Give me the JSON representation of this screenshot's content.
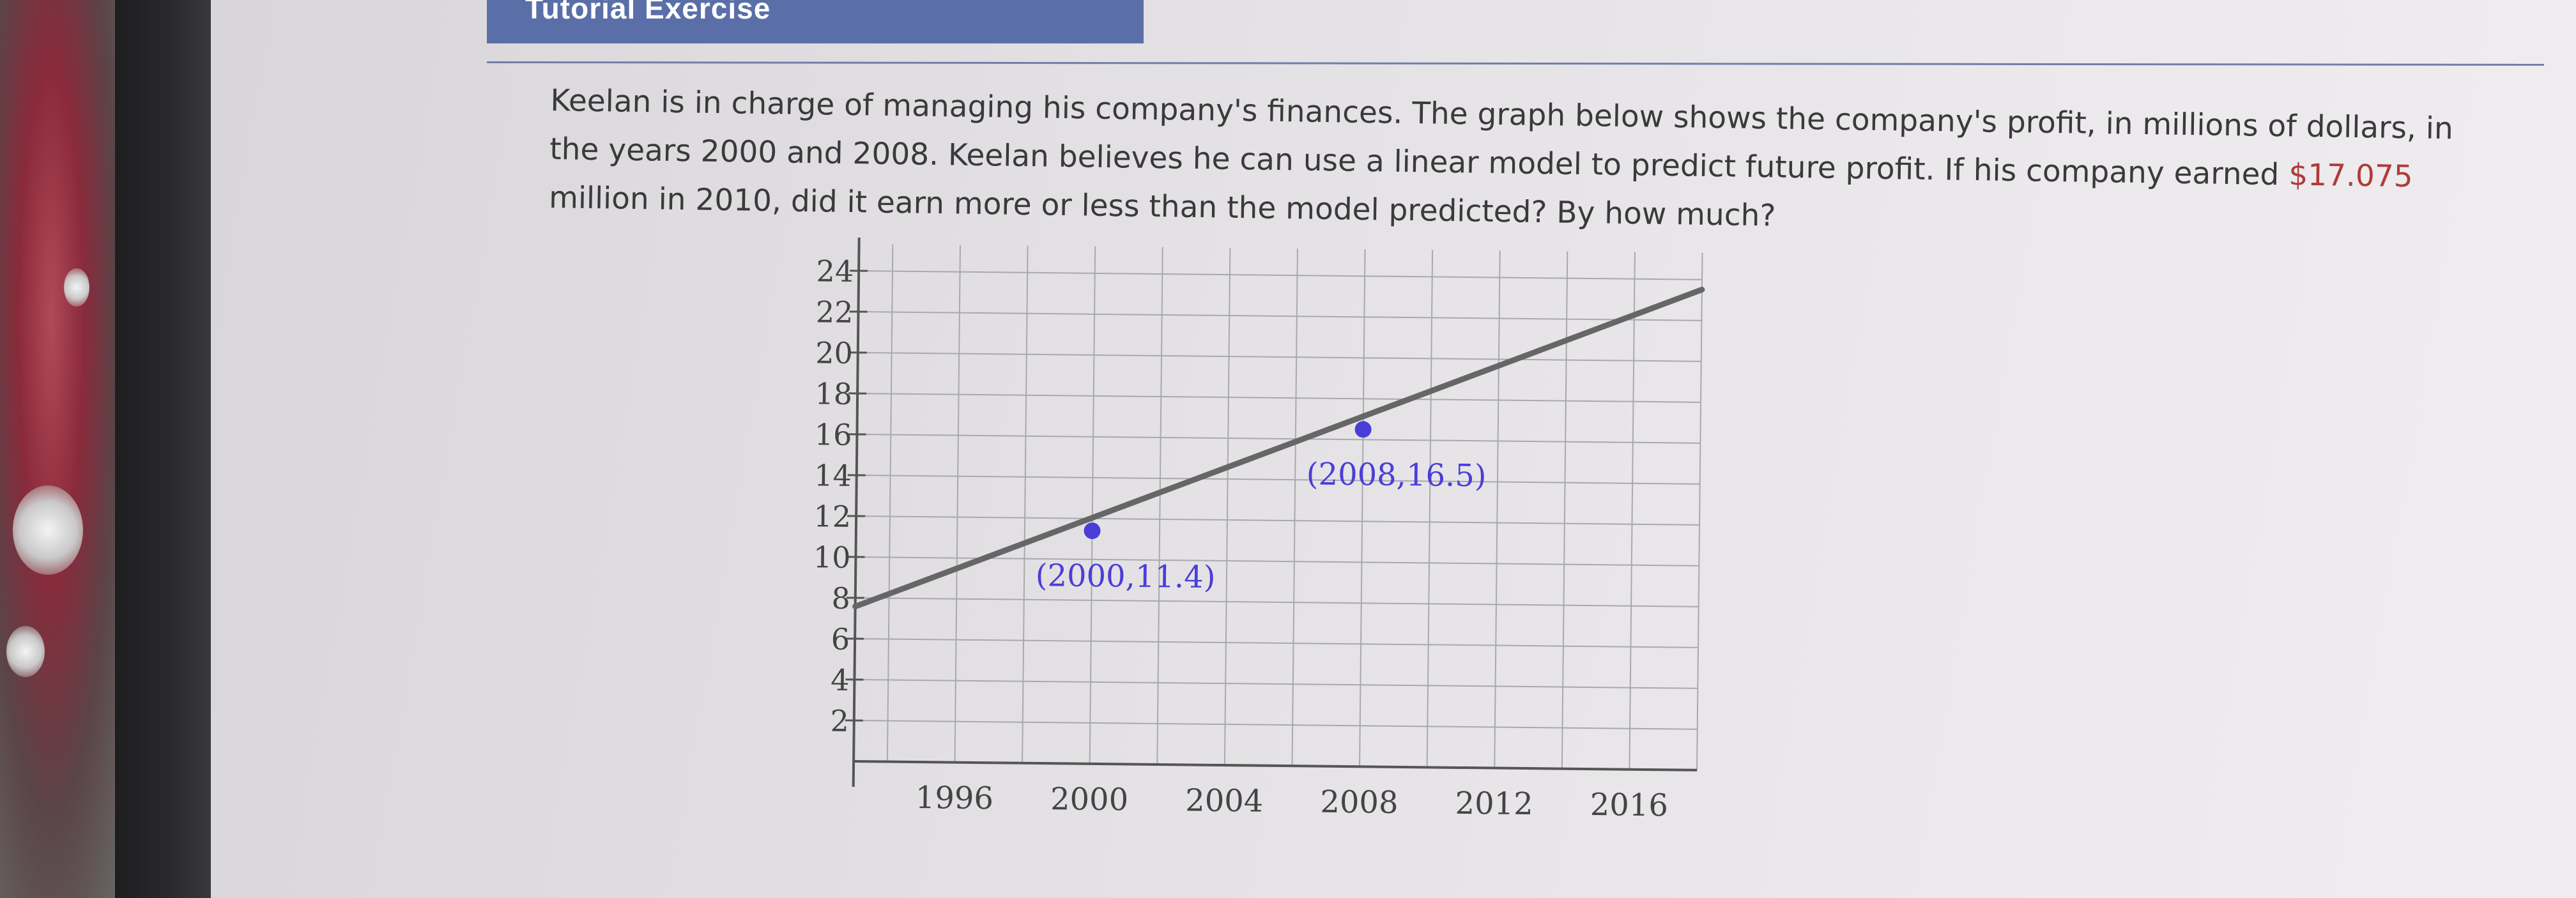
{
  "header": {
    "title": "Tutorial Exercise"
  },
  "question": {
    "part1": "Keelan is in charge of managing his company's finances. The graph below shows the company's profit, in millions of dollars, in the years 2000 and 2008. Keelan believes he can use a linear model to predict future profit. If his company earned ",
    "amount": "$17.075",
    "part2": " million in 2010, did it earn more or less than the model predicted? By how much?"
  },
  "colors": {
    "header_bg": "#5a6fa8",
    "point": "#4a3ed8",
    "point_label": "#4a3ed8",
    "line": "#666666",
    "amount": "#b03a3a"
  },
  "chart_data": {
    "type": "line",
    "xlim": [
      1993,
      2018
    ],
    "ylim": [
      0,
      25
    ],
    "x_ticks": [
      1996,
      2000,
      2004,
      2008,
      2012,
      2016
    ],
    "x_tick_labels": [
      "1996",
      "2000",
      "2004",
      "2008",
      "2012",
      "2016"
    ],
    "y_ticks": [
      2,
      4,
      6,
      8,
      10,
      12,
      14,
      16,
      18,
      20,
      22,
      24
    ],
    "y_tick_labels": [
      "2",
      "4",
      "6",
      "8",
      "10",
      "12",
      "14",
      "16",
      "18",
      "20",
      "22",
      "24"
    ],
    "grid": true,
    "series": [
      {
        "x": [
          1993,
          2018
        ],
        "y": [
          7.575,
          23.5125
        ]
      }
    ],
    "points": [
      {
        "x": 2000,
        "y": 11.4,
        "label": "(2000,11.4)",
        "label_pos": "below-right"
      },
      {
        "x": 2008,
        "y": 16.5,
        "label": "(2008,16.5)",
        "label_pos": "below-right"
      }
    ]
  }
}
